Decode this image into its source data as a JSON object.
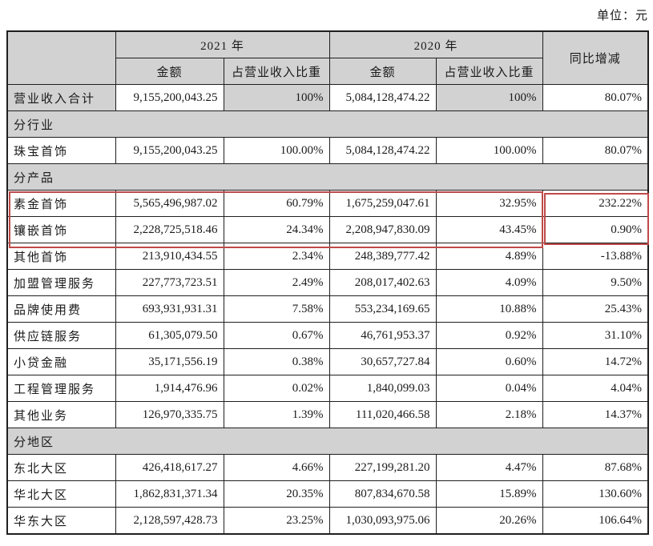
{
  "page": {
    "unit_label": "单位：元"
  },
  "table": {
    "header": {
      "year_2021": "2021 年",
      "year_2020": "2020 年",
      "amount": "金额",
      "share": "占营业收入比重",
      "yoy": "同比增减"
    },
    "highlight_color": "#bf4a4a",
    "rows": [
      {
        "type": "total",
        "label": "营业收入合计",
        "a2021": "9,155,200,043.25",
        "p2021": "100%",
        "a2020": "5,084,128,474.22",
        "p2020": "100%",
        "yoy": "80.07%"
      },
      {
        "type": "section",
        "label": "分行业"
      },
      {
        "type": "data",
        "label": "珠宝首饰",
        "a2021": "9,155,200,043.25",
        "p2021": "100.00%",
        "a2020": "5,084,128,474.22",
        "p2020": "100.00%",
        "yoy": "80.07%"
      },
      {
        "type": "section",
        "label": "分产品"
      },
      {
        "type": "data",
        "label": "素金首饰",
        "a2021": "5,565,496,987.02",
        "p2021": "60.79%",
        "a2020": "1,675,259,047.61",
        "p2020": "32.95%",
        "yoy": "232.22%"
      },
      {
        "type": "data",
        "label": "镶嵌首饰",
        "a2021": "2,228,725,518.46",
        "p2021": "24.34%",
        "a2020": "2,208,947,830.09",
        "p2020": "43.45%",
        "yoy": "0.90%"
      },
      {
        "type": "data",
        "label": "其他首饰",
        "a2021": "213,910,434.55",
        "p2021": "2.34%",
        "a2020": "248,389,777.42",
        "p2020": "4.89%",
        "yoy": "-13.88%"
      },
      {
        "type": "data",
        "label": "加盟管理服务",
        "a2021": "227,773,723.51",
        "p2021": "2.49%",
        "a2020": "208,017,402.63",
        "p2020": "4.09%",
        "yoy": "9.50%"
      },
      {
        "type": "data",
        "label": "品牌使用费",
        "a2021": "693,931,931.31",
        "p2021": "7.58%",
        "a2020": "553,234,169.65",
        "p2020": "10.88%",
        "yoy": "25.43%"
      },
      {
        "type": "data",
        "label": "供应链服务",
        "a2021": "61,305,079.50",
        "p2021": "0.67%",
        "a2020": "46,761,953.37",
        "p2020": "0.92%",
        "yoy": "31.10%"
      },
      {
        "type": "data",
        "label": "小贷金融",
        "a2021": "35,171,556.19",
        "p2021": "0.38%",
        "a2020": "30,657,727.84",
        "p2020": "0.60%",
        "yoy": "14.72%"
      },
      {
        "type": "data",
        "label": "工程管理服务",
        "a2021": "1,914,476.96",
        "p2021": "0.02%",
        "a2020": "1,840,099.03",
        "p2020": "0.04%",
        "yoy": "4.04%"
      },
      {
        "type": "data",
        "label": "其他业务",
        "a2021": "126,970,335.75",
        "p2021": "1.39%",
        "a2020": "111,020,466.58",
        "p2020": "2.18%",
        "yoy": "14.37%"
      },
      {
        "type": "section",
        "label": "分地区"
      },
      {
        "type": "data",
        "label": "东北大区",
        "a2021": "426,418,617.27",
        "p2021": "4.66%",
        "a2020": "227,199,281.20",
        "p2020": "4.47%",
        "yoy": "87.68%"
      },
      {
        "type": "data",
        "label": "华北大区",
        "a2021": "1,862,831,371.34",
        "p2021": "20.35%",
        "a2020": "807,834,670.58",
        "p2020": "15.89%",
        "yoy": "130.60%"
      },
      {
        "type": "data",
        "label": "华东大区",
        "a2021": "2,128,597,428.73",
        "p2021": "23.25%",
        "a2020": "1,030,093,975.06",
        "p2020": "20.26%",
        "yoy": "106.64%"
      }
    ]
  },
  "annotations": {
    "highlighted_labels": [
      "素金首饰",
      "镶嵌首饰"
    ]
  }
}
